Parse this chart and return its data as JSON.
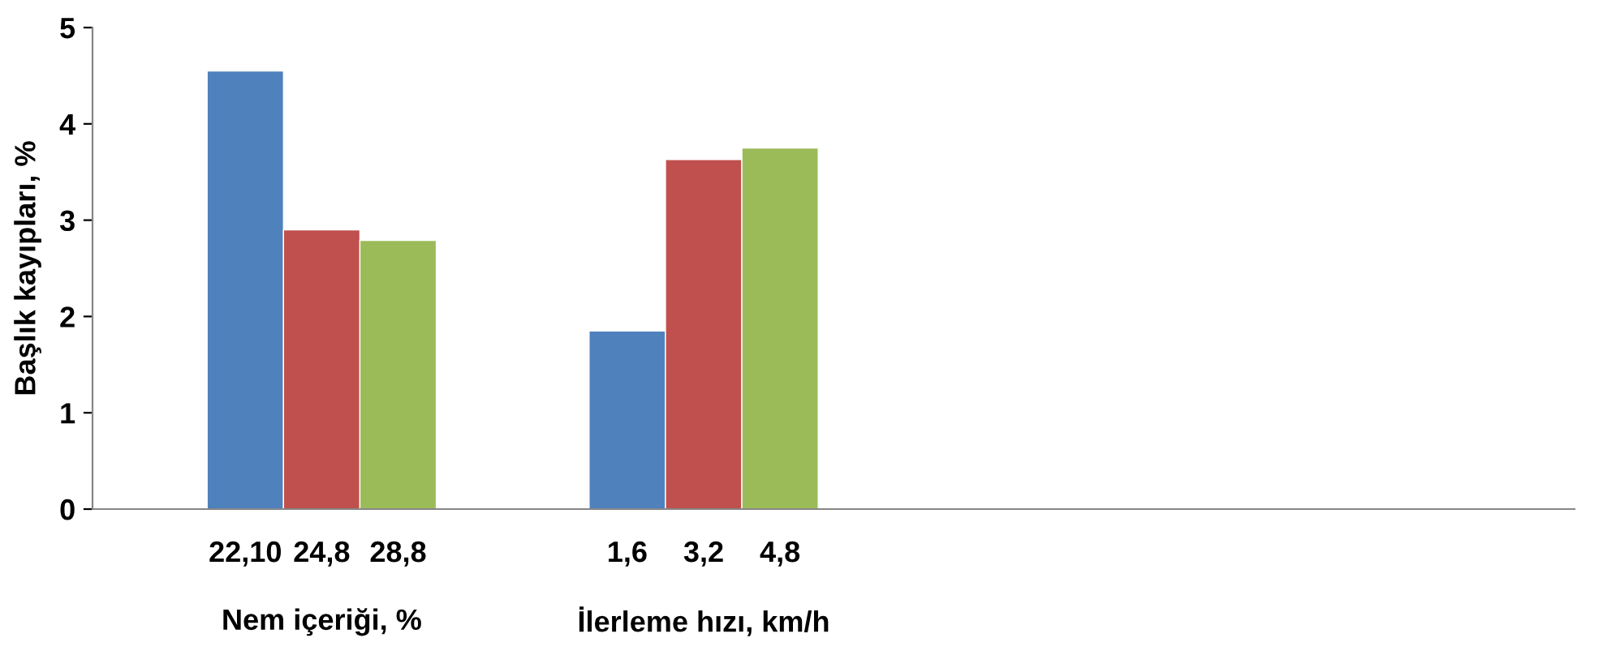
{
  "chart_data": {
    "type": "bar",
    "ylabel": "Başlık kayıpları, %",
    "categories": [
      "22,10",
      "24,8",
      "28,8",
      null,
      null,
      "1,6",
      "3,2",
      "4,8",
      null,
      null,
      null,
      null,
      null,
      null,
      null,
      null,
      null,
      null
    ],
    "values": [
      4.55,
      2.9,
      2.79,
      null,
      null,
      1.85,
      3.63,
      3.75,
      null,
      null,
      null,
      null,
      null,
      null,
      null,
      null,
      null,
      null
    ],
    "colors": [
      "#4f81bd",
      "#c0504d",
      "#9bbb59",
      null,
      null,
      "#4f81bd",
      "#c0504d",
      "#9bbb59",
      null,
      null,
      null,
      null,
      null,
      null,
      null,
      null,
      null,
      null
    ],
    "ylim": [
      0,
      5
    ],
    "yticks": [
      0,
      1,
      2,
      3,
      4,
      5
    ],
    "grid": false,
    "legend": false,
    "annotations": [
      "Nem içeriği, %",
      "İlerleme hızı, km/h"
    ]
  }
}
